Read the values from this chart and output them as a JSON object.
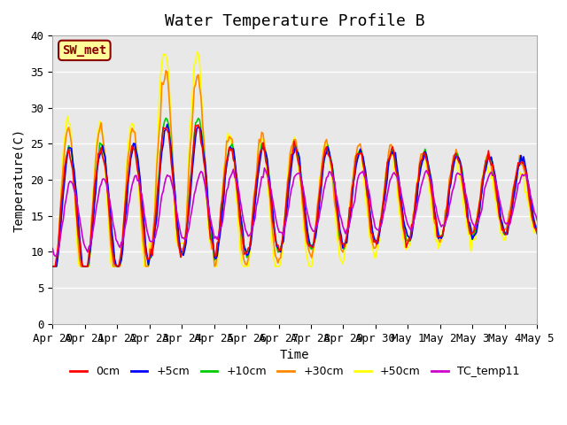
{
  "title": "Water Temperature Profile B",
  "xlabel": "Time",
  "ylabel": "Temperature(C)",
  "ylim": [
    0,
    40
  ],
  "yticks": [
    0,
    5,
    10,
    15,
    20,
    25,
    30,
    35,
    40
  ],
  "xlabels": [
    "Apr 20",
    "Apr 21",
    "Apr 22",
    "Apr 23",
    "Apr 24",
    "Apr 25",
    "Apr 26",
    "Apr 27",
    "Apr 28",
    "Apr 29",
    "Apr 30",
    "May 1",
    "May 2",
    "May 3",
    "May 4",
    "May 5"
  ],
  "annotation_text": "SW_met",
  "annotation_color": "#8B0000",
  "annotation_bg": "#FFFF99",
  "annotation_border": "#8B0000",
  "colors": {
    "0cm": "#FF0000",
    "+5cm": "#0000FF",
    "+10cm": "#00CC00",
    "+30cm": "#FF8800",
    "+50cm": "#FFFF00",
    "TC_temp11": "#CC00CC"
  },
  "bg_color": "#E8E8E8",
  "grid_color": "#FFFFFF",
  "title_fontsize": 13,
  "label_fontsize": 10,
  "tick_fontsize": 9,
  "legend_fontsize": 9
}
